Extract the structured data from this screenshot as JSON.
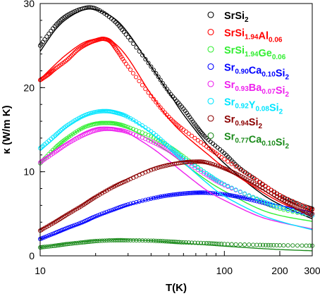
{
  "chart_data": {
    "type": "scatter",
    "xlabel": "T(K)",
    "ylabel": "κ (W/m K)",
    "xscale": "log",
    "xlim": [
      10,
      300
    ],
    "ylim": [
      0,
      30
    ],
    "xticks": [
      10,
      100,
      200,
      300
    ],
    "xticklabels": [
      "10",
      "100",
      "200",
      "300"
    ],
    "yticks": [
      0,
      10,
      20,
      30
    ],
    "yticklabels": [
      "0",
      "10",
      "20",
      "30"
    ],
    "grid": false,
    "legend_position": "top-right",
    "series": [
      {
        "name": "SrSi2",
        "legend": [
          [
            "SrSi",
            ""
          ],
          [
            "2",
            "sub"
          ]
        ],
        "color": "#000000",
        "points": [
          [
            10,
            25
          ],
          [
            12,
            27.3
          ],
          [
            14,
            28.6
          ],
          [
            17,
            29.4
          ],
          [
            20,
            29.4
          ],
          [
            25,
            28
          ],
          [
            30,
            26
          ],
          [
            40,
            22.5
          ],
          [
            50,
            19.5
          ],
          [
            60,
            17.5
          ],
          [
            70,
            15.5
          ],
          [
            80,
            14
          ],
          [
            100,
            12.2
          ],
          [
            120,
            10.5
          ],
          [
            150,
            9
          ],
          [
            200,
            7.2
          ],
          [
            250,
            6.2
          ],
          [
            300,
            5.6
          ]
        ],
        "fit": [
          [
            10,
            24.3
          ],
          [
            12,
            26.8
          ],
          [
            14,
            28.2
          ],
          [
            17,
            29.2
          ],
          [
            20,
            29.3
          ],
          [
            25,
            28.3
          ],
          [
            30,
            26.5
          ],
          [
            40,
            22.5
          ],
          [
            50,
            19.4
          ],
          [
            60,
            16.8
          ],
          [
            80,
            13.3
          ],
          [
            100,
            11
          ],
          [
            150,
            7.8
          ],
          [
            200,
            6.1
          ],
          [
            300,
            4.4
          ]
        ]
      },
      {
        "name": "SrSi1.94Al0.06",
        "legend": [
          [
            "SrSi",
            ""
          ],
          [
            "1.94",
            "sub"
          ],
          [
            "Al",
            ""
          ],
          [
            "0.06",
            "sub"
          ]
        ],
        "color": "#ff0000",
        "points": [
          [
            10,
            20.9
          ],
          [
            11,
            21.5
          ],
          [
            12,
            22.2
          ],
          [
            14,
            23.3
          ],
          [
            16,
            24.5
          ],
          [
            18,
            25.2
          ],
          [
            20,
            25.6
          ],
          [
            22,
            25.8
          ],
          [
            24,
            25.5
          ],
          [
            26,
            24.5
          ],
          [
            30,
            22.5
          ],
          [
            40,
            19
          ],
          [
            50,
            16.5
          ],
          [
            60,
            15
          ],
          [
            80,
            13
          ],
          [
            100,
            11.5
          ],
          [
            150,
            9
          ],
          [
            200,
            7.2
          ],
          [
            300,
            5.5
          ]
        ],
        "fit": [
          [
            10,
            21
          ],
          [
            12,
            22.7
          ],
          [
            14,
            24
          ],
          [
            17,
            25.3
          ],
          [
            20,
            25.8
          ],
          [
            22,
            25.9
          ],
          [
            25,
            25.4
          ],
          [
            30,
            23.5
          ],
          [
            40,
            19.2
          ],
          [
            50,
            16.3
          ],
          [
            60,
            14.5
          ],
          [
            80,
            12.2
          ],
          [
            100,
            10.5
          ],
          [
            150,
            8
          ],
          [
            200,
            6.4
          ],
          [
            300,
            4.6
          ]
        ]
      },
      {
        "name": "SrSi1.94Ge0.06",
        "legend": [
          [
            "SrSi",
            ""
          ],
          [
            "1.94",
            "sub"
          ],
          [
            "Ge",
            ""
          ],
          [
            "0.06",
            "sub"
          ]
        ],
        "color": "#33ee33",
        "points": [
          [
            10,
            11
          ],
          [
            12,
            12.8
          ],
          [
            14,
            14
          ],
          [
            17,
            15.2
          ],
          [
            20,
            15.7
          ],
          [
            23,
            15.8
          ],
          [
            26,
            15.7
          ],
          [
            30,
            15.3
          ],
          [
            40,
            14.2
          ],
          [
            50,
            13
          ],
          [
            60,
            11.8
          ],
          [
            80,
            9.8
          ],
          [
            100,
            8.5
          ],
          [
            150,
            6.7
          ],
          [
            200,
            5.6
          ],
          [
            300,
            4.8
          ]
        ],
        "fit": [
          [
            10,
            11
          ],
          [
            12,
            12.7
          ],
          [
            14,
            14
          ],
          [
            17,
            15.2
          ],
          [
            20,
            15.8
          ],
          [
            23,
            15.9
          ],
          [
            26,
            15.7
          ],
          [
            30,
            15.2
          ],
          [
            40,
            13.7
          ],
          [
            50,
            12.3
          ],
          [
            60,
            11
          ],
          [
            80,
            9
          ],
          [
            100,
            7.7
          ],
          [
            150,
            5.7
          ],
          [
            200,
            4.8
          ],
          [
            300,
            4.1
          ]
        ]
      },
      {
        "name": "Sr0.90Ca0.10Si2",
        "legend": [
          [
            "Sr",
            ""
          ],
          [
            "0.90",
            "sub"
          ],
          [
            "Ca",
            ""
          ],
          [
            "0.10",
            "sub"
          ],
          [
            "Si",
            ""
          ],
          [
            "2",
            "sub"
          ]
        ],
        "color": "#0000ff",
        "points": [
          [
            10,
            2
          ],
          [
            12,
            2.7
          ],
          [
            14,
            3.3
          ],
          [
            17,
            4
          ],
          [
            20,
            4.7
          ],
          [
            25,
            5.5
          ],
          [
            30,
            6.1
          ],
          [
            40,
            6.8
          ],
          [
            50,
            7.2
          ],
          [
            60,
            7.4
          ],
          [
            70,
            7.5
          ],
          [
            80,
            7.5
          ],
          [
            100,
            7.3
          ],
          [
            120,
            7
          ],
          [
            150,
            6.5
          ],
          [
            200,
            5.8
          ],
          [
            300,
            5
          ]
        ],
        "fit": [
          [
            10,
            2
          ],
          [
            12,
            2.6
          ],
          [
            14,
            3.2
          ],
          [
            17,
            3.9
          ],
          [
            20,
            4.6
          ],
          [
            25,
            5.4
          ],
          [
            30,
            6
          ],
          [
            40,
            6.8
          ],
          [
            50,
            7.2
          ],
          [
            60,
            7.4
          ],
          [
            70,
            7.5
          ],
          [
            80,
            7.5
          ],
          [
            100,
            7.3
          ],
          [
            150,
            6.6
          ],
          [
            200,
            6
          ],
          [
            300,
            5.2
          ]
        ]
      },
      {
        "name": "Sr0.93Ba0.07Si2",
        "legend": [
          [
            "Sr",
            ""
          ],
          [
            "0.93",
            "sub"
          ],
          [
            "Ba",
            ""
          ],
          [
            "0.07",
            "sub"
          ],
          [
            "Si",
            ""
          ],
          [
            "2",
            "sub"
          ]
        ],
        "color": "#ee22ee",
        "points": [
          [
            10,
            11.1
          ],
          [
            12,
            12.3
          ],
          [
            14,
            13.3
          ],
          [
            17,
            14.3
          ],
          [
            20,
            14.9
          ],
          [
            23,
            15.1
          ],
          [
            26,
            15
          ],
          [
            30,
            14.7
          ],
          [
            40,
            13.6
          ],
          [
            50,
            12.5
          ],
          [
            60,
            11.3
          ],
          [
            80,
            9.6
          ],
          [
            100,
            8.4
          ],
          [
            150,
            6.8
          ],
          [
            200,
            5.8
          ],
          [
            300,
            4.8
          ]
        ],
        "fit": [
          [
            10,
            11.3
          ],
          [
            12,
            12.5
          ],
          [
            14,
            13.5
          ],
          [
            17,
            14.6
          ],
          [
            20,
            15.2
          ],
          [
            23,
            15.3
          ],
          [
            26,
            15.1
          ],
          [
            30,
            14.6
          ],
          [
            40,
            12.9
          ],
          [
            50,
            11.3
          ],
          [
            60,
            9.9
          ],
          [
            80,
            7.8
          ],
          [
            100,
            6.6
          ],
          [
            150,
            4.8
          ],
          [
            200,
            4
          ],
          [
            300,
            3.2
          ]
        ]
      },
      {
        "name": "Sr0.92Y0.08Si2",
        "legend": [
          [
            "Sr",
            ""
          ],
          [
            "0.92",
            "sub"
          ],
          [
            "Y",
            ""
          ],
          [
            "0.08",
            "sub"
          ],
          [
            "Si",
            ""
          ],
          [
            "2",
            "sub"
          ]
        ],
        "color": "#00e5ff",
        "points": [
          [
            10,
            12.8
          ],
          [
            12,
            14.3
          ],
          [
            14,
            15.5
          ],
          [
            17,
            16.6
          ],
          [
            20,
            17.1
          ],
          [
            23,
            17.2
          ],
          [
            26,
            17
          ],
          [
            30,
            16.5
          ],
          [
            40,
            14.8
          ],
          [
            50,
            13
          ],
          [
            60,
            11.6
          ],
          [
            80,
            9.8
          ],
          [
            100,
            8.5
          ],
          [
            150,
            6.8
          ],
          [
            200,
            5.8
          ],
          [
            300,
            4.8
          ]
        ],
        "fit": [
          [
            10,
            12.5
          ],
          [
            12,
            14
          ],
          [
            14,
            15.3
          ],
          [
            17,
            16.5
          ],
          [
            20,
            17.1
          ],
          [
            23,
            17.3
          ],
          [
            26,
            17.1
          ],
          [
            30,
            16.5
          ],
          [
            40,
            14.6
          ],
          [
            50,
            12.7
          ],
          [
            60,
            11.1
          ],
          [
            80,
            8.7
          ],
          [
            100,
            7.1
          ],
          [
            150,
            5.1
          ],
          [
            200,
            4.1
          ],
          [
            300,
            3.1
          ]
        ]
      },
      {
        "name": "Sr0.94Si2",
        "legend": [
          [
            "Sr",
            ""
          ],
          [
            "0.94",
            "sub"
          ],
          [
            "Si",
            ""
          ],
          [
            "2",
            "sub"
          ]
        ],
        "color": "#8b0000",
        "points": [
          [
            10,
            3
          ],
          [
            12,
            4
          ],
          [
            14,
            4.9
          ],
          [
            17,
            6
          ],
          [
            20,
            7
          ],
          [
            25,
            8.2
          ],
          [
            30,
            9
          ],
          [
            40,
            10.2
          ],
          [
            50,
            10.8
          ],
          [
            60,
            11.1
          ],
          [
            70,
            11.2
          ],
          [
            80,
            11.1
          ],
          [
            100,
            10.4
          ],
          [
            120,
            9.6
          ],
          [
            150,
            8.4
          ],
          [
            200,
            6.9
          ],
          [
            250,
            5.8
          ],
          [
            300,
            5
          ]
        ],
        "fit": [
          [
            10,
            3.1
          ],
          [
            12,
            4.1
          ],
          [
            14,
            5
          ],
          [
            17,
            6.1
          ],
          [
            20,
            7.1
          ],
          [
            25,
            8.3
          ],
          [
            30,
            9.2
          ],
          [
            40,
            10.4
          ],
          [
            50,
            11
          ],
          [
            60,
            11.2
          ],
          [
            70,
            11.2
          ],
          [
            80,
            11
          ],
          [
            100,
            10.3
          ],
          [
            150,
            8.3
          ],
          [
            200,
            6.6
          ],
          [
            300,
            4.6
          ]
        ]
      },
      {
        "name": "Sr0.77Ca0.10Si2",
        "legend": [
          [
            "Sr",
            ""
          ],
          [
            "0.77",
            "sub"
          ],
          [
            "Ca",
            ""
          ],
          [
            "0.10",
            "sub"
          ],
          [
            "Si",
            ""
          ],
          [
            "2",
            "sub"
          ]
        ],
        "color": "#1a8a1a",
        "points": [
          [
            10,
            1
          ],
          [
            12,
            1.2
          ],
          [
            14,
            1.4
          ],
          [
            17,
            1.6
          ],
          [
            20,
            1.75
          ],
          [
            25,
            1.85
          ],
          [
            30,
            1.85
          ],
          [
            40,
            1.8
          ],
          [
            50,
            1.7
          ],
          [
            60,
            1.6
          ],
          [
            80,
            1.5
          ],
          [
            100,
            1.4
          ],
          [
            150,
            1.3
          ],
          [
            200,
            1.25
          ],
          [
            300,
            1.2
          ]
        ],
        "fit": [
          [
            10,
            1
          ],
          [
            12,
            1.25
          ],
          [
            14,
            1.45
          ],
          [
            17,
            1.65
          ],
          [
            20,
            1.8
          ],
          [
            25,
            1.9
          ],
          [
            30,
            1.9
          ],
          [
            40,
            1.8
          ],
          [
            50,
            1.65
          ],
          [
            60,
            1.5
          ],
          [
            80,
            1.3
          ],
          [
            100,
            1.15
          ],
          [
            150,
            0.9
          ],
          [
            200,
            0.75
          ],
          [
            300,
            0.6
          ]
        ]
      }
    ]
  }
}
